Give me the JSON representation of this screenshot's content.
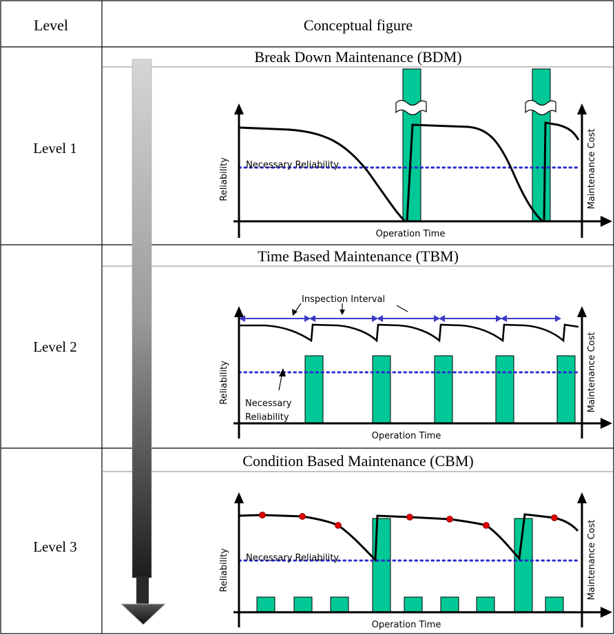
{
  "table": {
    "headers": {
      "level": "Level",
      "figure": "Conceptual figure"
    },
    "rows": [
      {
        "level": "Level 1",
        "title": "Break Down Maintenance (BDM)"
      },
      {
        "level": "Level 2",
        "title": "Time Based Maintenance (TBM)"
      },
      {
        "level": "Level 3",
        "title": "Condition Based Maintenance (CBM)"
      }
    ]
  },
  "chart_labels": {
    "y_left": "Reliability",
    "y_right": "Maintenance Cost",
    "x": "Operation Time",
    "threshold": "Necessary Reliability",
    "threshold_line1": "Necessary",
    "threshold_line2": "Reliability",
    "interval": "Inspection Interval"
  },
  "colors": {
    "bar_fill": "#00c896",
    "threshold_line": "#2a2ad0",
    "interval_arrow": "#3a3ac8",
    "condition_point": "#e00000"
  }
}
